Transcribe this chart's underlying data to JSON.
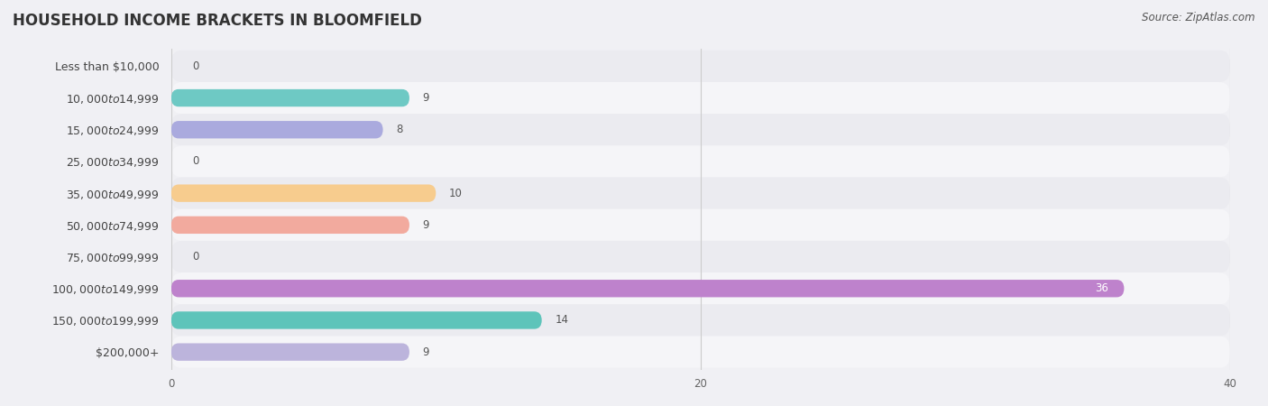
{
  "title": "HOUSEHOLD INCOME BRACKETS IN BLOOMFIELD",
  "source": "Source: ZipAtlas.com",
  "categories": [
    "Less than $10,000",
    "$10,000 to $14,999",
    "$15,000 to $24,999",
    "$25,000 to $34,999",
    "$35,000 to $49,999",
    "$50,000 to $74,999",
    "$75,000 to $99,999",
    "$100,000 to $149,999",
    "$150,000 to $199,999",
    "$200,000+"
  ],
  "values": [
    0,
    9,
    8,
    0,
    10,
    9,
    0,
    36,
    14,
    9
  ],
  "bar_colors": [
    "#d4aed4",
    "#6ec9c4",
    "#aaaade",
    "#f5a0b8",
    "#f7cc8e",
    "#f2aa9e",
    "#a2c4ec",
    "#be82cc",
    "#5ec4ba",
    "#bcb4dc"
  ],
  "row_bg_colors": [
    "#ebebf0",
    "#f5f5f8"
  ],
  "xlim": [
    0,
    40
  ],
  "xticks": [
    0,
    20,
    40
  ],
  "bg_color": "#f0f0f4",
  "plot_bg": "#f0f0f4",
  "title_fontsize": 12,
  "label_fontsize": 9,
  "value_fontsize": 8.5,
  "source_fontsize": 8.5,
  "value_inside_color": "white",
  "value_outside_color": "#555555",
  "value_inside_threshold": 36
}
